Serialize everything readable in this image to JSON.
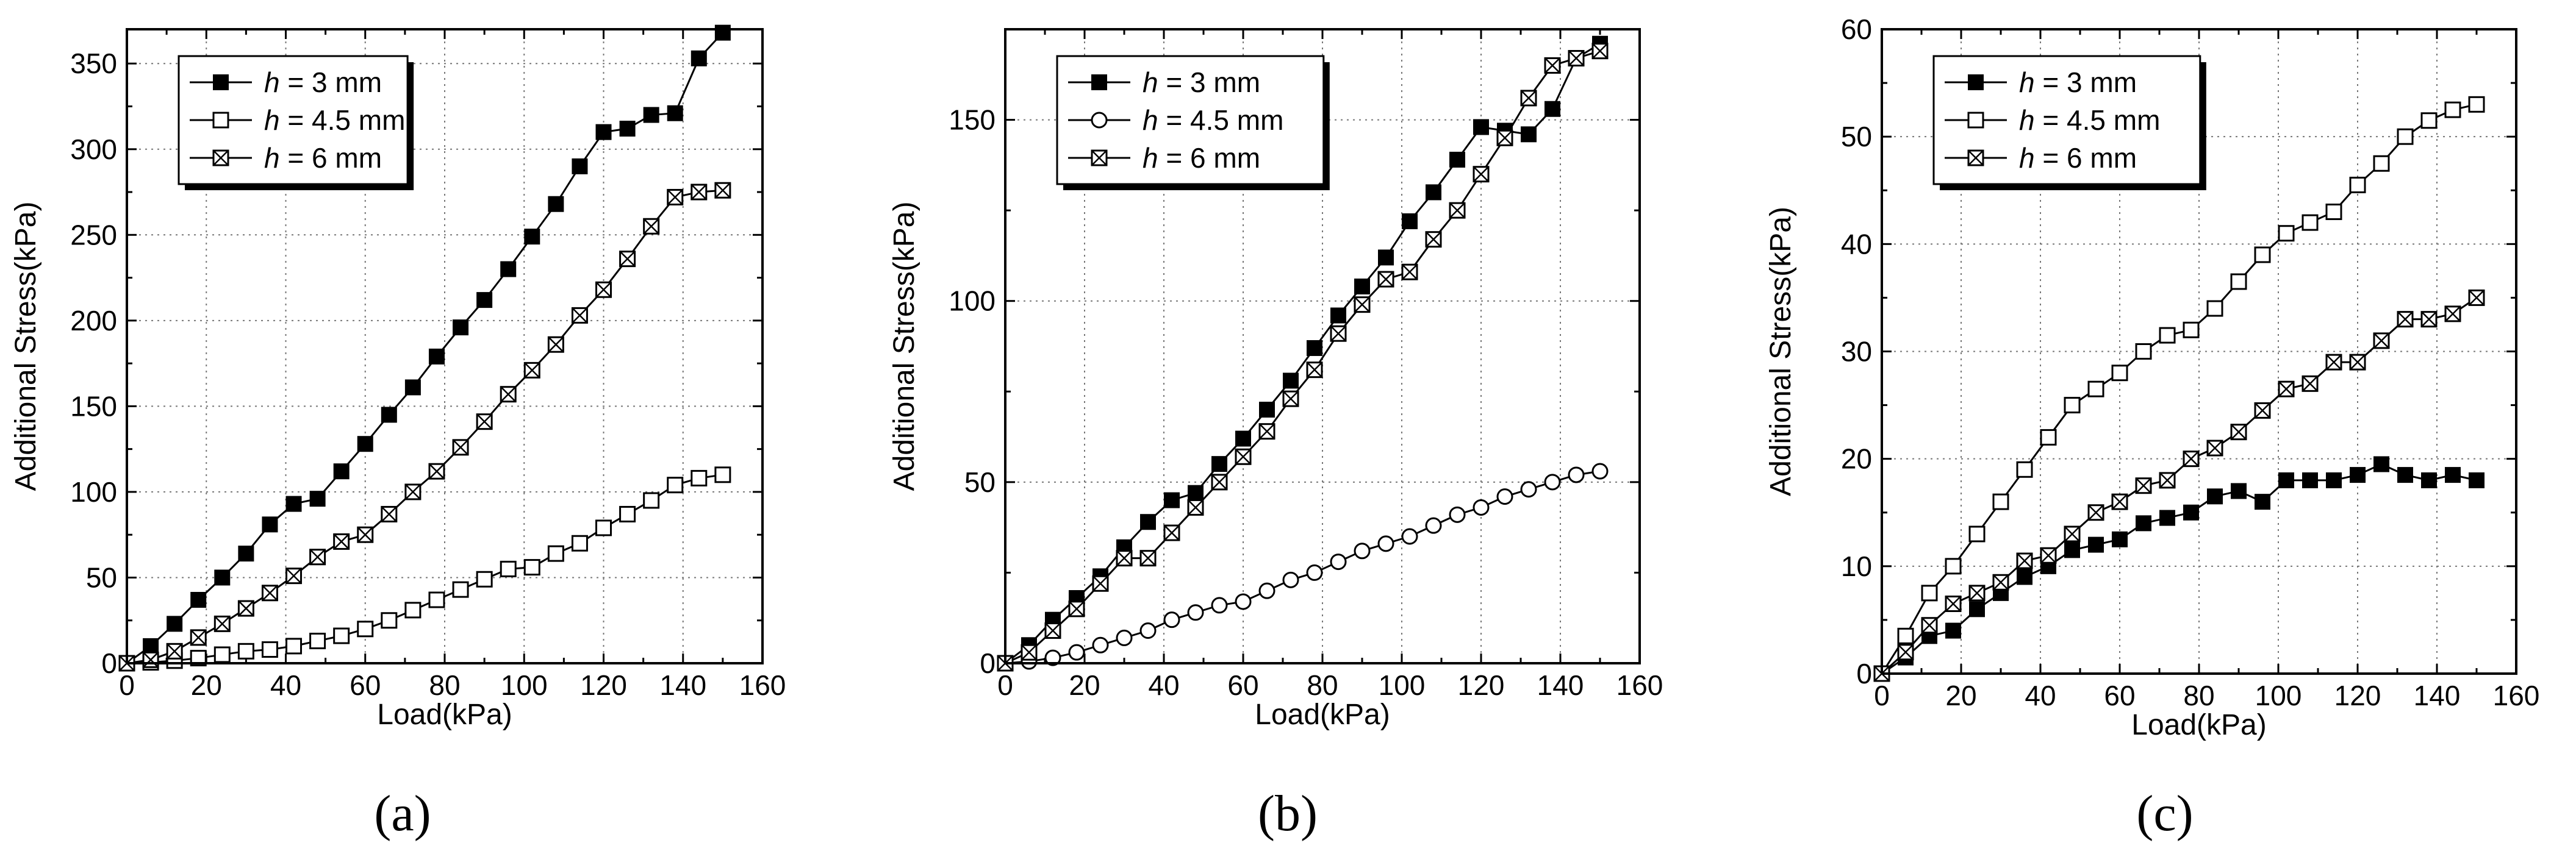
{
  "chart_data": [
    {
      "type": "line",
      "panel": "(a)",
      "xlabel": "Load(kPa)",
      "ylabel": "Additional Stress(kPa)",
      "xlim": [
        0,
        160
      ],
      "ylim": [
        0,
        370
      ],
      "xticks": [
        0,
        20,
        40,
        60,
        80,
        100,
        120,
        140,
        160
      ],
      "yticks": [
        0,
        50,
        100,
        150,
        200,
        250,
        300,
        350
      ],
      "xminor": 10,
      "yminor": 25,
      "grid": true,
      "legend_position": "top-left",
      "legend_width_frac": 0.36,
      "series": [
        {
          "name_prefix": "h",
          "name_suffix": " = 3 mm",
          "marker": "filled-square",
          "x": [
            0,
            6,
            12,
            18,
            24,
            30,
            36,
            42,
            48,
            54,
            60,
            66,
            72,
            78,
            84,
            90,
            96,
            102,
            108,
            114,
            120,
            126,
            132,
            138,
            144,
            150
          ],
          "y": [
            0,
            10,
            23,
            37,
            50,
            64,
            81,
            93,
            96,
            112,
            128,
            145,
            161,
            179,
            196,
            212,
            230,
            249,
            268,
            290,
            310,
            312,
            320,
            321,
            353,
            368
          ]
        },
        {
          "name_prefix": "h",
          "name_suffix": " = 4.5 mm",
          "marker": "open-square",
          "x": [
            0,
            6,
            12,
            18,
            24,
            30,
            36,
            42,
            48,
            54,
            60,
            66,
            72,
            78,
            84,
            90,
            96,
            102,
            108,
            114,
            120,
            126,
            132,
            138,
            144,
            150
          ],
          "y": [
            0,
            0.5,
            1.5,
            3,
            5,
            7,
            8,
            10,
            13,
            16,
            20,
            25,
            31,
            37,
            43,
            49,
            55,
            56,
            64,
            70,
            79,
            87,
            95,
            104,
            108,
            110
          ]
        },
        {
          "name_prefix": "h",
          "name_suffix": " = 6 mm",
          "marker": "crossed-square",
          "x": [
            0,
            6,
            12,
            18,
            24,
            30,
            36,
            42,
            48,
            54,
            60,
            66,
            72,
            78,
            84,
            90,
            96,
            102,
            108,
            114,
            120,
            126,
            132,
            138,
            144,
            150
          ],
          "y": [
            0,
            2,
            7,
            15,
            23,
            32,
            41,
            51,
            62,
            71,
            75,
            87,
            100,
            112,
            126,
            141,
            157,
            171,
            186,
            203,
            218,
            236,
            255,
            272,
            275,
            276
          ]
        }
      ]
    },
    {
      "type": "line",
      "panel": "(b)",
      "xlabel": "Load(kPa)",
      "ylabel": "Additional Stress(kPa)",
      "xlim": [
        0,
        160
      ],
      "ylim": [
        0,
        175
      ],
      "xticks": [
        0,
        20,
        40,
        60,
        80,
        100,
        120,
        140,
        160
      ],
      "yticks": [
        0,
        50,
        100,
        150
      ],
      "xminor": 10,
      "yminor": 25,
      "grid": true,
      "legend_position": "top-left",
      "legend_width_frac": 0.42,
      "series": [
        {
          "name_prefix": "h",
          "name_suffix": " = 3 mm",
          "marker": "filled-square",
          "x": [
            0,
            6,
            12,
            18,
            24,
            30,
            36,
            42,
            48,
            54,
            60,
            66,
            72,
            78,
            84,
            90,
            96,
            102,
            108,
            114,
            120,
            126,
            132,
            138,
            144,
            150
          ],
          "y": [
            0,
            5,
            12,
            18,
            24,
            32,
            39,
            45,
            47,
            55,
            62,
            70,
            78,
            87,
            96,
            104,
            112,
            122,
            130,
            139,
            148,
            147,
            146,
            153,
            167,
            171
          ]
        },
        {
          "name_prefix": "h",
          "name_suffix": " = 4.5 mm",
          "marker": "open-circle",
          "x": [
            0,
            6,
            12,
            18,
            24,
            30,
            36,
            42,
            48,
            54,
            60,
            66,
            72,
            78,
            84,
            90,
            96,
            102,
            108,
            114,
            120,
            126,
            132,
            138,
            144,
            150
          ],
          "y": [
            0,
            0.5,
            1.5,
            3,
            5,
            7,
            9,
            12,
            14,
            16,
            17,
            20,
            23,
            25,
            28,
            31,
            33,
            35,
            38,
            41,
            43,
            46,
            48,
            50,
            52,
            53
          ]
        },
        {
          "name_prefix": "h",
          "name_suffix": " = 6 mm",
          "marker": "crossed-square",
          "x": [
            0,
            6,
            12,
            18,
            24,
            30,
            36,
            42,
            48,
            54,
            60,
            66,
            72,
            78,
            84,
            90,
            96,
            102,
            108,
            114,
            120,
            126,
            132,
            138,
            144,
            150
          ],
          "y": [
            0,
            3,
            9,
            15,
            22,
            29,
            29,
            36,
            43,
            50,
            57,
            64,
            73,
            81,
            91,
            99,
            106,
            108,
            117,
            125,
            135,
            145,
            156,
            165,
            167,
            169
          ]
        }
      ]
    },
    {
      "type": "line",
      "panel": "(c)",
      "xlabel": "Load(kPa)",
      "ylabel": "Additional Stress(kPa)",
      "xlim": [
        0,
        160
      ],
      "ylim": [
        0,
        60
      ],
      "xticks": [
        0,
        20,
        40,
        60,
        80,
        100,
        120,
        140,
        160
      ],
      "yticks": [
        0,
        10,
        20,
        30,
        40,
        50,
        60
      ],
      "xminor": 10,
      "yminor": 5,
      "grid": true,
      "legend_position": "top-left",
      "legend_width_frac": 0.42,
      "series": [
        {
          "name_prefix": "h",
          "name_suffix": " = 3 mm",
          "marker": "filled-square",
          "x": [
            0,
            6,
            12,
            18,
            24,
            30,
            36,
            42,
            48,
            54,
            60,
            66,
            72,
            78,
            84,
            90,
            96,
            102,
            108,
            114,
            120,
            126,
            132,
            138,
            144,
            150
          ],
          "y": [
            0,
            1.5,
            3.5,
            4,
            6,
            7.5,
            9,
            10,
            11.5,
            12,
            12.5,
            14,
            14.5,
            15,
            16.5,
            17,
            16,
            18,
            18,
            18,
            18.5,
            19.5,
            18.5,
            18,
            18.5,
            18
          ]
        },
        {
          "name_prefix": "h",
          "name_suffix": " = 4.5 mm",
          "marker": "open-square",
          "x": [
            0,
            6,
            12,
            18,
            24,
            30,
            36,
            42,
            48,
            54,
            60,
            66,
            72,
            78,
            84,
            90,
            96,
            102,
            108,
            114,
            120,
            126,
            132,
            138,
            144,
            150
          ],
          "y": [
            0,
            3.5,
            7.5,
            10,
            13,
            16,
            19,
            22,
            25,
            26.5,
            28,
            30,
            31.5,
            32,
            34,
            36.5,
            39,
            41,
            42,
            43,
            45.5,
            47.5,
            50,
            51.5,
            52.5,
            53
          ]
        },
        {
          "name_prefix": "h",
          "name_suffix": " = 6 mm",
          "marker": "crossed-square",
          "x": [
            0,
            6,
            12,
            18,
            24,
            30,
            36,
            42,
            48,
            54,
            60,
            66,
            72,
            78,
            84,
            90,
            96,
            102,
            108,
            114,
            120,
            126,
            132,
            138,
            144,
            150
          ],
          "y": [
            0,
            2,
            4.5,
            6.5,
            7.5,
            8.5,
            10.5,
            11,
            13,
            15,
            16,
            17.5,
            18,
            20,
            21,
            22.5,
            24.5,
            26.5,
            27,
            29,
            29,
            31,
            33,
            33,
            33.5,
            35
          ]
        }
      ]
    }
  ]
}
